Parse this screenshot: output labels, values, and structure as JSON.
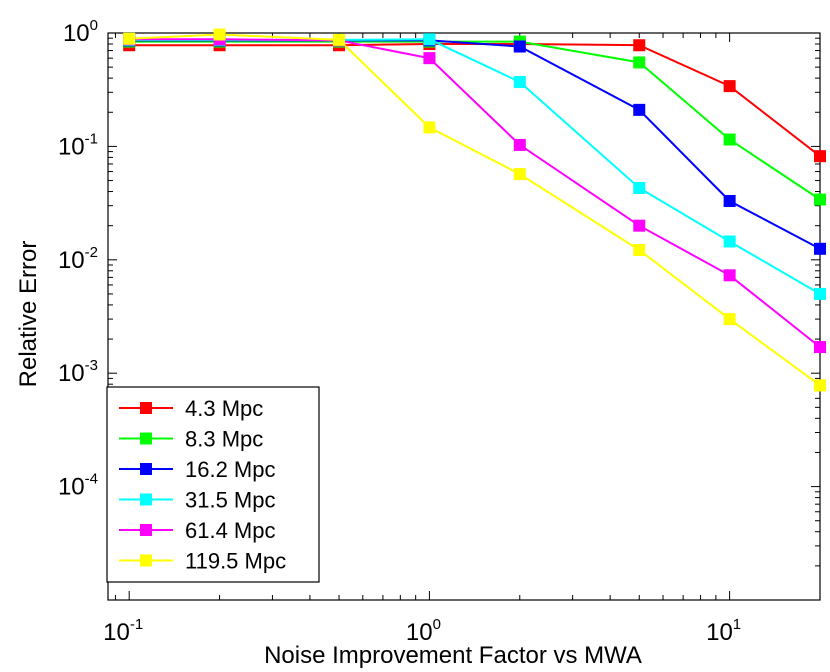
{
  "chart_data": {
    "type": "line",
    "xscale": "log",
    "yscale": "log",
    "xlabel": "Noise Improvement Factor vs MWA",
    "ylabel": "Relative Error",
    "xlim": [
      0.085,
      20
    ],
    "ylim": [
      1e-05,
      1
    ],
    "x_ticks": [
      {
        "value": 0.1,
        "base": "10",
        "exp": "-1"
      },
      {
        "value": 1,
        "base": "10",
        "exp": "0"
      },
      {
        "value": 10,
        "base": "10",
        "exp": "1"
      }
    ],
    "y_ticks": [
      {
        "value": 1,
        "base": "10",
        "exp": "0"
      },
      {
        "value": 0.1,
        "base": "10",
        "exp": "-1"
      },
      {
        "value": 0.01,
        "base": "10",
        "exp": "-2"
      },
      {
        "value": 0.001,
        "base": "10",
        "exp": "-3"
      },
      {
        "value": 0.0001,
        "base": "10",
        "exp": "-4"
      }
    ],
    "x": [
      0.1,
      0.2,
      0.5,
      1,
      2,
      5,
      10,
      20
    ],
    "series": [
      {
        "name": "4.3 Mpc",
        "color": "#ff0000",
        "values": [
          0.78,
          0.78,
          0.78,
          0.8,
          0.8,
          0.78,
          0.34,
          0.082
        ]
      },
      {
        "name": "8.3 Mpc",
        "color": "#00ff00",
        "values": [
          0.84,
          0.84,
          0.84,
          0.84,
          0.84,
          0.55,
          0.115,
          0.034
        ]
      },
      {
        "name": "16.2 Mpc",
        "color": "#0000ff",
        "values": [
          0.86,
          0.86,
          0.86,
          0.86,
          0.76,
          0.21,
          0.033,
          0.0125
        ]
      },
      {
        "name": "31.5 Mpc",
        "color": "#00ffff",
        "values": [
          0.87,
          0.87,
          0.87,
          0.88,
          0.37,
          0.043,
          0.0145,
          0.005
        ]
      },
      {
        "name": "61.4 Mpc",
        "color": "#ff00ff",
        "values": [
          0.88,
          0.88,
          0.86,
          0.6,
          0.103,
          0.02,
          0.0073,
          0.0017
        ]
      },
      {
        "name": "119.5 Mpc",
        "color": "#ffff00",
        "values": [
          0.89,
          0.97,
          0.87,
          0.147,
          0.057,
          0.0122,
          0.003,
          0.00078
        ]
      }
    ],
    "legend_position": "bottom-left",
    "grid": false
  }
}
